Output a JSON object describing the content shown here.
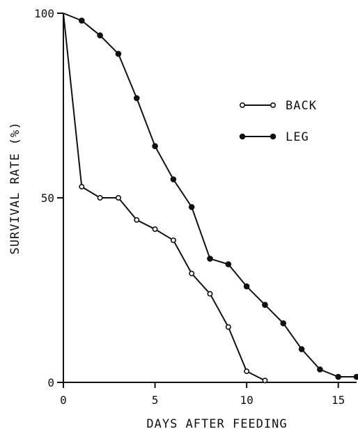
{
  "chart_data": {
    "type": "line",
    "title": "",
    "xlabel": "DAYS AFTER FEEDING",
    "ylabel": "SURVIVAL RATE (%)",
    "xlim": [
      0,
      16
    ],
    "ylim": [
      0,
      100
    ],
    "xticks": [
      0,
      5,
      10,
      15
    ],
    "yticks": [
      0,
      50,
      100
    ],
    "grid": false,
    "legend_position": "right",
    "series": [
      {
        "name": "BACK",
        "marker": "open-circle",
        "x": [
          0,
          1,
          2,
          3,
          4,
          5,
          6,
          7,
          8,
          9,
          10,
          11
        ],
        "y": [
          100,
          53,
          50,
          50,
          44,
          41.5,
          38.5,
          29.5,
          24,
          15,
          3,
          0.5
        ]
      },
      {
        "name": "LEG",
        "marker": "filled-circle",
        "x": [
          0,
          1,
          2,
          3,
          4,
          5,
          6,
          7,
          8,
          9,
          10,
          11,
          12,
          13,
          14,
          15,
          16
        ],
        "y": [
          100,
          98,
          94,
          89,
          77,
          64,
          55,
          47.5,
          33.5,
          32,
          26,
          21,
          16,
          9,
          3.5,
          1.5,
          1.5
        ]
      }
    ]
  }
}
